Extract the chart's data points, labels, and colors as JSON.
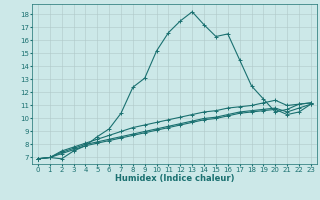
{
  "title": "",
  "xlabel": "Humidex (Indice chaleur)",
  "ylabel": "",
  "background_color": "#cce8e8",
  "grid_color": "#b0c8c8",
  "line_color": "#1a7070",
  "xlim": [
    -0.5,
    23.5
  ],
  "ylim": [
    6.5,
    18.8
  ],
  "xticks": [
    0,
    1,
    2,
    3,
    4,
    5,
    6,
    7,
    8,
    9,
    10,
    11,
    12,
    13,
    14,
    15,
    16,
    17,
    18,
    19,
    20,
    21,
    22,
    23
  ],
  "yticks": [
    7,
    8,
    9,
    10,
    11,
    12,
    13,
    14,
    15,
    16,
    17,
    18
  ],
  "curve1_x": [
    0,
    1,
    2,
    3,
    4,
    5,
    6,
    7,
    8,
    9,
    10,
    11,
    12,
    13,
    14,
    15,
    16,
    17,
    18,
    19,
    20,
    21,
    22,
    23
  ],
  "curve1_y": [
    6.9,
    7.0,
    6.9,
    7.5,
    7.9,
    8.6,
    9.2,
    10.4,
    12.4,
    13.1,
    15.2,
    16.6,
    17.5,
    18.2,
    17.2,
    16.3,
    16.5,
    14.5,
    12.5,
    11.5,
    10.5,
    10.7,
    11.1,
    11.2
  ],
  "curve2_x": [
    0,
    1,
    2,
    3,
    4,
    5,
    6,
    7,
    8,
    9,
    10,
    11,
    12,
    13,
    14,
    15,
    16,
    17,
    18,
    19,
    20,
    21,
    22,
    23
  ],
  "curve2_y": [
    6.9,
    7.0,
    7.5,
    7.8,
    8.1,
    8.4,
    8.7,
    9.0,
    9.3,
    9.5,
    9.7,
    9.9,
    10.1,
    10.3,
    10.5,
    10.6,
    10.8,
    10.9,
    11.0,
    11.2,
    11.4,
    11.0,
    11.1,
    11.2
  ],
  "curve3_x": [
    0,
    1,
    2,
    3,
    4,
    5,
    6,
    7,
    8,
    9,
    10,
    11,
    12,
    13,
    14,
    15,
    16,
    17,
    18,
    19,
    20,
    21,
    22,
    23
  ],
  "curve3_y": [
    6.9,
    7.0,
    7.4,
    7.7,
    8.0,
    8.2,
    8.4,
    8.6,
    8.8,
    9.0,
    9.2,
    9.4,
    9.6,
    9.8,
    10.0,
    10.1,
    10.3,
    10.5,
    10.6,
    10.7,
    10.8,
    10.5,
    10.8,
    11.1
  ],
  "curve4_x": [
    0,
    1,
    2,
    3,
    4,
    5,
    6,
    7,
    8,
    9,
    10,
    11,
    12,
    13,
    14,
    15,
    16,
    17,
    18,
    19,
    20,
    21,
    22,
    23
  ],
  "curve4_y": [
    6.9,
    7.0,
    7.3,
    7.6,
    7.9,
    8.1,
    8.3,
    8.5,
    8.7,
    8.9,
    9.1,
    9.3,
    9.5,
    9.7,
    9.9,
    10.0,
    10.2,
    10.4,
    10.5,
    10.6,
    10.7,
    10.3,
    10.5,
    11.1
  ],
  "tick_fontsize": 5.0,
  "xlabel_fontsize": 6.0,
  "marker_size": 3.0,
  "linewidth": 0.8
}
